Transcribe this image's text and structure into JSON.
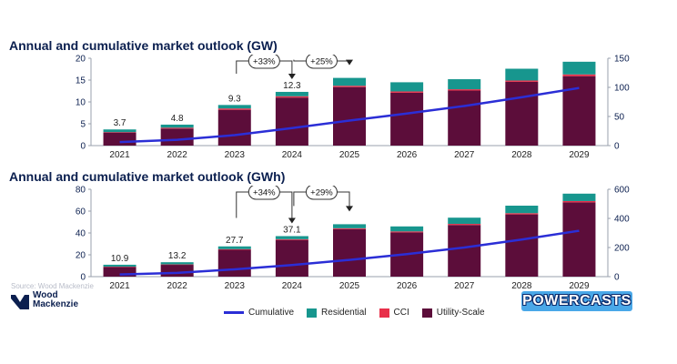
{
  "colors": {
    "utility": "#5c0d3a",
    "cci": "#e8304a",
    "residential": "#17968e",
    "cumulative": "#2b2ed6",
    "axis": "#0b1f4f"
  },
  "chart_data": [
    {
      "type": "bar",
      "stacked": true,
      "title": "Annual and cumulative market outlook (GW)",
      "categories": [
        "2021",
        "2022",
        "2023",
        "2024",
        "2025",
        "2026",
        "2027",
        "2028",
        "2029"
      ],
      "ylim": [
        0,
        20
      ],
      "yticks": [
        0,
        5,
        10,
        15,
        20
      ],
      "y2lim": [
        0,
        150
      ],
      "y2ticks": [
        0,
        50,
        100,
        150
      ],
      "series": [
        {
          "name": "Utility-Scale",
          "values": [
            3.0,
            3.9,
            8.2,
            11.0,
            13.4,
            12.1,
            12.6,
            14.6,
            15.9
          ]
        },
        {
          "name": "CCI",
          "values": [
            0.1,
            0.2,
            0.3,
            0.3,
            0.3,
            0.3,
            0.3,
            0.3,
            0.4
          ]
        },
        {
          "name": "Residential",
          "values": [
            0.6,
            0.7,
            0.8,
            1.0,
            1.8,
            2.1,
            2.3,
            2.7,
            2.9
          ]
        }
      ],
      "cumulative": {
        "name": "Cumulative",
        "values": [
          6,
          10,
          18,
          30,
          43,
          55,
          68,
          83,
          99
        ]
      },
      "total_labels": [
        "3.7",
        "4.8",
        "9.3",
        "12.3",
        null,
        null,
        null,
        null,
        null
      ],
      "growth_annotations": [
        {
          "label": "+33%",
          "from": 2,
          "to": 3
        },
        {
          "label": "+25%",
          "from": 3,
          "to": 4
        }
      ]
    },
    {
      "type": "bar",
      "stacked": true,
      "title": "Annual and cumulative market outlook (GWh)",
      "categories": [
        "2021",
        "2022",
        "2023",
        "2024",
        "2025",
        "2026",
        "2027",
        "2028",
        "2029"
      ],
      "ylim": [
        0,
        80
      ],
      "yticks": [
        0,
        20,
        40,
        60,
        80
      ],
      "y2lim": [
        0,
        600
      ],
      "y2ticks": [
        0,
        200,
        400,
        600
      ],
      "series": [
        {
          "name": "Utility-Scale",
          "values": [
            8.9,
            10.8,
            24.6,
            33.6,
            43.5,
            40.5,
            47.3,
            57.0,
            68.0
          ]
        },
        {
          "name": "CCI",
          "values": [
            0.3,
            0.4,
            0.6,
            0.7,
            0.8,
            0.9,
            1.0,
            1.1,
            1.2
          ]
        },
        {
          "name": "Residential",
          "values": [
            1.7,
            2.0,
            2.5,
            2.8,
            3.7,
            4.6,
            5.7,
            6.9,
            6.8
          ]
        }
      ],
      "cumulative": {
        "name": "Cumulative",
        "values": [
          15,
          26,
          50,
          80,
          115,
          155,
          200,
          255,
          315
        ]
      },
      "total_labels": [
        "10.9",
        "13.2",
        "27.7",
        "37.1",
        null,
        null,
        null,
        null,
        null
      ],
      "growth_annotations": [
        {
          "label": "+34%",
          "from": 2,
          "to": 3
        },
        {
          "label": "+29%",
          "from": 3,
          "to": 4
        }
      ]
    }
  ],
  "legend": {
    "cumulative": "Cumulative",
    "residential": "Residential",
    "cci": "CCI",
    "utility": "Utility-Scale"
  },
  "source": "Source: Wood Mackenzie",
  "logo": {
    "line1": "Wood",
    "line2": "Mackenzie"
  },
  "badge": "POWERCASTS"
}
